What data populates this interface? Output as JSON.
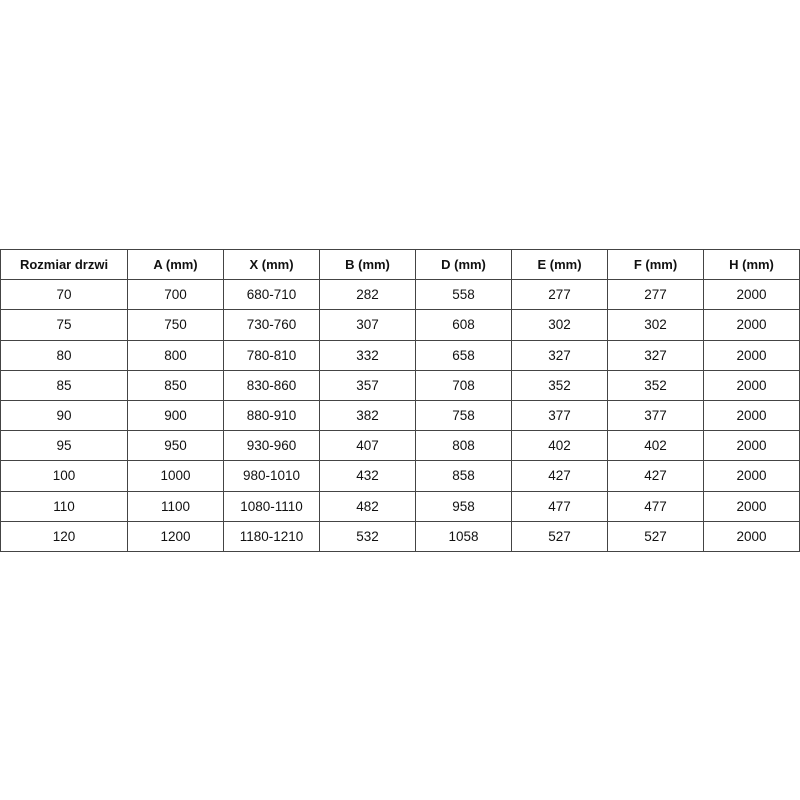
{
  "table": {
    "headers": [
      "Rozmiar drzwi",
      "A (mm)",
      "X (mm)",
      "B (mm)",
      "D (mm)",
      "E (mm)",
      "F (mm)",
      "H (mm)"
    ],
    "rows": [
      [
        "70",
        "700",
        "680-710",
        "282",
        "558",
        "277",
        "277",
        "2000"
      ],
      [
        "75",
        "750",
        "730-760",
        "307",
        "608",
        "302",
        "302",
        "2000"
      ],
      [
        "80",
        "800",
        "780-810",
        "332",
        "658",
        "327",
        "327",
        "2000"
      ],
      [
        "85",
        "850",
        "830-860",
        "357",
        "708",
        "352",
        "352",
        "2000"
      ],
      [
        "90",
        "900",
        "880-910",
        "382",
        "758",
        "377",
        "377",
        "2000"
      ],
      [
        "95",
        "950",
        "930-960",
        "407",
        "808",
        "402",
        "402",
        "2000"
      ],
      [
        "100",
        "1000",
        "980-1010",
        "432",
        "858",
        "427",
        "427",
        "2000"
      ],
      [
        "110",
        "1100",
        "1080-1110",
        "482",
        "958",
        "477",
        "477",
        "2000"
      ],
      [
        "120",
        "1200",
        "1180-1210",
        "532",
        "1058",
        "527",
        "527",
        "2000"
      ]
    ]
  }
}
